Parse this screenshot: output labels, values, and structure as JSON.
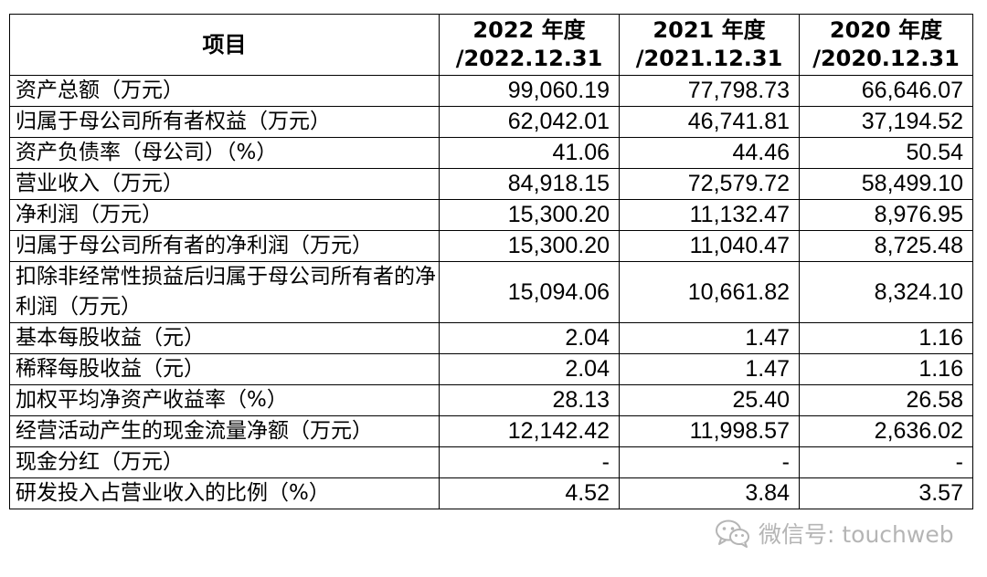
{
  "header": {
    "item": "项目",
    "columns": [
      {
        "year": "2022 年度",
        "date": "/2022.12.31"
      },
      {
        "year": "2021 年度",
        "date": "/2021.12.31"
      },
      {
        "year": "2020 年度",
        "date": "/2020.12.31"
      }
    ]
  },
  "rows": [
    {
      "label": "资产总额（万元）",
      "values": [
        "99,060.19",
        "77,798.73",
        "66,646.07"
      ]
    },
    {
      "label": "归属于母公司所有者权益（万元）",
      "values": [
        "62,042.01",
        "46,741.81",
        "37,194.52"
      ]
    },
    {
      "label": "资产负债率（母公司）（%）",
      "values": [
        "41.06",
        "44.46",
        "50.54"
      ]
    },
    {
      "label": "营业收入（万元）",
      "values": [
        "84,918.15",
        "72,579.72",
        "58,499.10"
      ]
    },
    {
      "label": "净利润（万元）",
      "values": [
        "15,300.20",
        "11,132.47",
        "8,976.95"
      ]
    },
    {
      "label": "归属于母公司所有者的净利润（万元）",
      "values": [
        "15,300.20",
        "11,040.47",
        "8,725.48"
      ]
    },
    {
      "label": "扣除非经常性损益后归属于母公司所有者的净利润（万元）",
      "values": [
        "15,094.06",
        "10,661.82",
        "8,324.10"
      ]
    },
    {
      "label": "基本每股收益（元）",
      "values": [
        "2.04",
        "1.47",
        "1.16"
      ]
    },
    {
      "label": "稀释每股收益（元）",
      "values": [
        "2.04",
        "1.47",
        "1.16"
      ]
    },
    {
      "label": "加权平均净资产收益率（%）",
      "values": [
        "28.13",
        "25.40",
        "26.58"
      ]
    },
    {
      "label": "经营活动产生的现金流量净额（万元）",
      "values": [
        "12,142.42",
        "11,998.57",
        "2,636.02"
      ]
    },
    {
      "label": "现金分红（万元）",
      "values": [
        "-",
        "-",
        "-"
      ]
    },
    {
      "label": "研发投入占营业收入的比例（%）",
      "values": [
        "4.52",
        "3.84",
        "3.57"
      ]
    }
  ],
  "watermark": {
    "icon": "wechat-icon",
    "text": "微信号: touchweb",
    "color": "#b5b5b5"
  }
}
